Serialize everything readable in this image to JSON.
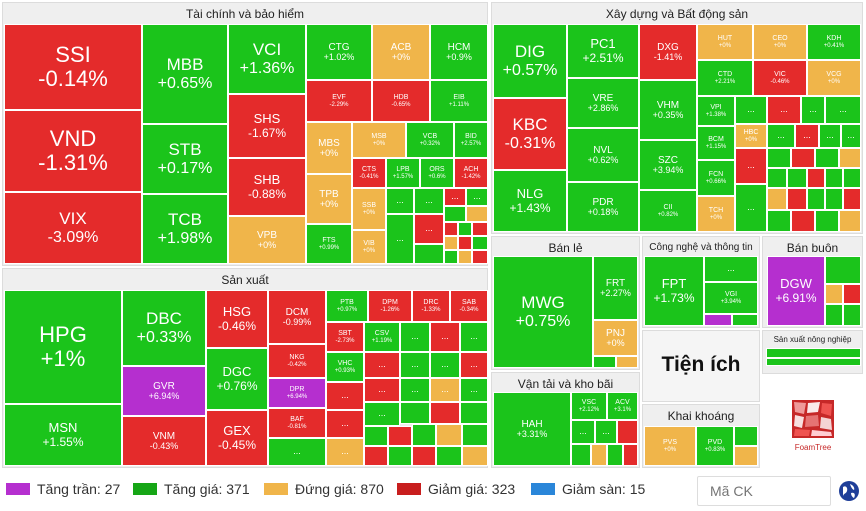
{
  "sectors": {
    "fin": "Tài chính và bảo hiểm",
    "re": "Xây dựng và Bất động sản",
    "mfg": "Sản xuất",
    "retail": "Bán lẻ",
    "tech": "Công nghệ và thông tin",
    "wholesale": "Bán buôn",
    "transport": "Vận tải và kho bãi",
    "util": "Tiện ích",
    "mining": "Khai khoáng",
    "agri": "Sản xuất nông nghiệp"
  },
  "tiles": {
    "ssi": {
      "t": "SSI",
      "v": "-0.14%"
    },
    "vnd": {
      "t": "VND",
      "v": "-1.31%"
    },
    "vix": {
      "t": "VIX",
      "v": "-3.09%"
    },
    "mbb": {
      "t": "MBB",
      "v": "+0.65%"
    },
    "stb": {
      "t": "STB",
      "v": "+0.17%"
    },
    "tcb": {
      "t": "TCB",
      "v": "+1.98%"
    },
    "vci": {
      "t": "VCI",
      "v": "+1.36%"
    },
    "shs": {
      "t": "SHS",
      "v": "-1.67%"
    },
    "shb": {
      "t": "SHB",
      "v": "-0.88%"
    },
    "vpb": {
      "t": "VPB",
      "v": "+0%"
    },
    "ctg": {
      "t": "CTG",
      "v": "+1.02%"
    },
    "acb": {
      "t": "ACB",
      "v": "+0%"
    },
    "hcm": {
      "t": "HCM",
      "v": "+0.9%"
    },
    "evf": {
      "t": "EVF",
      "v": "-2.29%"
    },
    "hdb": {
      "t": "HDB",
      "v": "-0.65%"
    },
    "eib": {
      "t": "EIB",
      "v": "+1.11%"
    },
    "mbs": {
      "t": "MBS",
      "v": "+0%"
    },
    "msb": {
      "t": "MSB",
      "v": "+0%"
    },
    "vcb": {
      "t": "VCB",
      "v": "+0.32%"
    },
    "bid": {
      "t": "BID",
      "v": "+2.57%"
    },
    "tpb": {
      "t": "TPB",
      "v": "+0%"
    },
    "ctr": {
      "t": "CTS",
      "v": "-0.41%"
    },
    "lpb": {
      "t": "LPB",
      "v": "+1.57%"
    },
    "ors": {
      "t": "ORS",
      "v": "+0.6%"
    },
    "ach": {
      "t": "ACH",
      "v": "-1.42%"
    },
    "ssb": {
      "t": "SSB",
      "v": "+0%"
    },
    "fts": {
      "t": "FTS",
      "v": "+0.99%"
    },
    "vib": {
      "t": "VIB",
      "v": "+0%"
    },
    "dig": {
      "t": "DIG",
      "v": "+0.57%"
    },
    "kbc": {
      "t": "KBC",
      "v": "-0.31%"
    },
    "nlg": {
      "t": "NLG",
      "v": "+1.43%"
    },
    "pc1": {
      "t": "PC1",
      "v": "+2.51%"
    },
    "vre": {
      "t": "VRE",
      "v": "+2.86%"
    },
    "nvl": {
      "t": "NVL",
      "v": "+0.62%"
    },
    "pdr": {
      "t": "PDR",
      "v": "+0.18%"
    },
    "dxg": {
      "t": "DXG",
      "v": "-1.41%"
    },
    "vhm": {
      "t": "VHM",
      "v": "+0.35%"
    },
    "szc": {
      "t": "SZC",
      "v": "+3.94%"
    },
    "cii": {
      "t": "CII",
      "v": "+0.82%"
    },
    "hut": {
      "t": "HUT",
      "v": "+0%"
    },
    "ceo": {
      "t": "CEO",
      "v": "+0%"
    },
    "kdh": {
      "t": "KDH",
      "v": "+0.41%"
    },
    "ctd": {
      "t": "CTD",
      "v": "+2.21%"
    },
    "vic": {
      "t": "VIC",
      "v": "-0.46%"
    },
    "vcg": {
      "t": "VCG",
      "v": "+0%"
    },
    "vpi": {
      "t": "VPI",
      "v": "+1.38%"
    },
    "hbc": {
      "t": "HBC",
      "v": "+0%"
    },
    "bcm": {
      "t": "BCM",
      "v": "+1.15%"
    },
    "fcn": {
      "t": "FCN",
      "v": "+0.66%"
    },
    "tch": {
      "t": "TCH",
      "v": "+0%"
    },
    "hpg": {
      "t": "HPG",
      "v": "+1%"
    },
    "msn": {
      "t": "MSN",
      "v": "+1.55%"
    },
    "dbc": {
      "t": "DBC",
      "v": "+0.33%"
    },
    "gvr": {
      "t": "GVR",
      "v": "+6.94%"
    },
    "vnm": {
      "t": "VNM",
      "v": "-0.43%"
    },
    "hsg": {
      "t": "HSG",
      "v": "-0.46%"
    },
    "dgc": {
      "t": "DGC",
      "v": "+0.76%"
    },
    "gex": {
      "t": "GEX",
      "v": "-0.45%"
    },
    "dcm": {
      "t": "DCM",
      "v": "-0.99%"
    },
    "nkg": {
      "t": "NKG",
      "v": "-0.42%"
    },
    "dpr": {
      "t": "DPR",
      "v": "+6.94%"
    },
    "baf": {
      "t": "BAF",
      "v": "-0.81%"
    },
    "ptb": {
      "t": "PTB",
      "v": "+0.97%"
    },
    "dpm": {
      "t": "DPM",
      "v": "-1.26%"
    },
    "drc": {
      "t": "DRC",
      "v": "-1.33%"
    },
    "sab": {
      "t": "SAB",
      "v": "-0.34%"
    },
    "sbt": {
      "t": "SBT",
      "v": "-2.73%"
    },
    "csv": {
      "t": "CSV",
      "v": "+1.19%"
    },
    "vhc": {
      "t": "VHC",
      "v": "+0.93%"
    },
    "mwg": {
      "t": "MWG",
      "v": "+0.75%"
    },
    "frt": {
      "t": "FRT",
      "v": "+2.27%"
    },
    "pnj": {
      "t": "PNJ",
      "v": "+0%"
    },
    "fpt": {
      "t": "FPT",
      "v": "+1.73%"
    },
    "vgi": {
      "t": "VGI",
      "v": "+3.94%"
    },
    "dgw": {
      "t": "DGW",
      "v": "+6.91%"
    },
    "hah": {
      "t": "HAH",
      "v": "+3.31%"
    },
    "vsc": {
      "t": "VSC",
      "v": "+2.12%"
    },
    "acv": {
      "t": "ACV",
      "v": "+3.1%"
    },
    "pvs": {
      "t": "PVS",
      "v": "+0%"
    },
    "pvd": {
      "t": "PVD",
      "v": "+0.83%"
    }
  },
  "more": "...",
  "legend": [
    {
      "label": "Tăng trần: 27",
      "color": "#b52fcf"
    },
    {
      "label": "Tăng giá: 371",
      "color": "#16a616"
    },
    {
      "label": "Đứng giá: 870",
      "color": "#f0b54a"
    },
    {
      "label": "Giảm giá: 323",
      "color": "#c81e1e"
    },
    {
      "label": "Giảm sàn: 15",
      "color": "#2a86d9"
    }
  ],
  "search": {
    "placeholder": "Mã CK"
  },
  "brand": "FoamTree",
  "colors": {
    "up": "#1bc41b",
    "down": "#e42b2b",
    "flat": "#f0b54a",
    "ceiling": "#b52fcf",
    "floor": "#2a86d9"
  }
}
